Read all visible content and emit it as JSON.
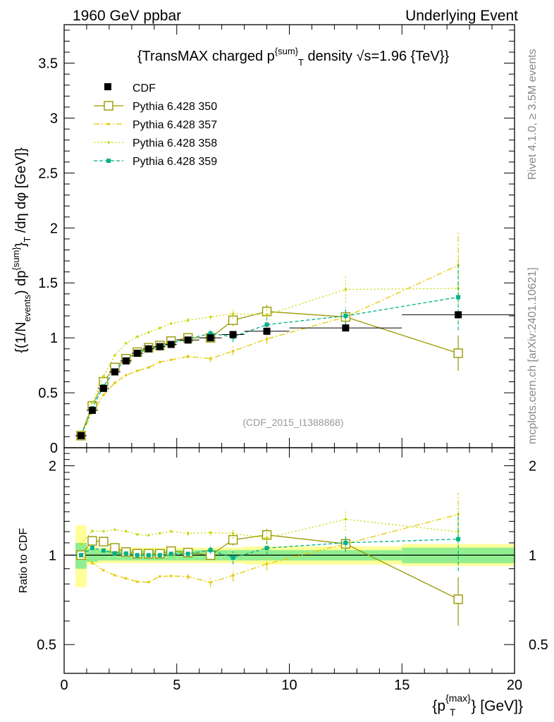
{
  "header": {
    "left": "1960 GeV ppbar",
    "right": "Underlying Event"
  },
  "side_labels": {
    "rivet": "Rivet 4.1.0, ≥ 3.5M events",
    "mcplots": "mcplots.cern.ch [arXiv:2401.10621]"
  },
  "chart_data": {
    "type": "line",
    "title": "{TransMAX charged p^{sum}_T density √s=1.96 {TeV}}",
    "title_parts": {
      "pre": "{TransMAX charged p",
      "sup": "{sum}",
      "sub": "T",
      "post": " density √s=1.96 {TeV}}"
    },
    "analysis_id": "(CDF_2015_I1388868)",
    "xlabel": "{p_T^{max}} [GeV]",
    "xlabel_parts": {
      "pre": "{p",
      "sup": "{max}",
      "sub": "T",
      "post": "} [GeV]}"
    },
    "ylabel": "{(1/N_events) dp^{sum}_T /dη dφ [GeV]}",
    "ylabel_parts": {
      "a": "{(1/N",
      "a_sub": "events",
      "b": ") dp",
      "b_sup": "{sum}",
      "c": "}",
      "c_sub": "T",
      "d": " /dη  dφ [GeV]}"
    },
    "ratio_ylabel": "Ratio to CDF",
    "xlim": [
      0,
      20
    ],
    "ylim": [
      0,
      3.85
    ],
    "ratio_ylim": [
      0.4,
      2.3
    ],
    "x_ticks": [
      0,
      5,
      10,
      15,
      20
    ],
    "y_ticks": [
      0,
      0.5,
      1,
      1.5,
      2,
      2.5,
      3,
      3.5
    ],
    "y_tick_labels": [
      "0",
      "0.5",
      "1",
      "1.5",
      "2",
      "2.5",
      "3",
      "3.5"
    ],
    "ratio_ticks": [
      0.5,
      1,
      2
    ],
    "ratio_tick_labels": [
      "0.5",
      "1",
      "2"
    ],
    "legend_position": "top-left",
    "data": {
      "name": "CDF",
      "x": [
        0.75,
        1.25,
        1.75,
        2.25,
        2.75,
        3.25,
        3.75,
        4.25,
        4.75,
        5.5,
        6.5,
        7.5,
        9.0,
        12.5,
        17.5
      ],
      "y": [
        0.11,
        0.34,
        0.54,
        0.69,
        0.79,
        0.86,
        0.9,
        0.92,
        0.94,
        0.98,
        1.0,
        1.03,
        1.06,
        1.09,
        1.21
      ],
      "xerr": [
        0.25,
        0.25,
        0.25,
        0.25,
        0.25,
        0.25,
        0.25,
        0.25,
        0.25,
        0.5,
        0.5,
        0.5,
        1.0,
        2.5,
        2.5
      ]
    },
    "series": [
      {
        "name": "Pythia 6.428 350",
        "color": "#999900",
        "dash": "",
        "marker": "open-square",
        "y": [
          0.11,
          0.38,
          0.6,
          0.73,
          0.81,
          0.87,
          0.91,
          0.93,
          0.97,
          1.0,
          1.0,
          1.16,
          1.24,
          1.19,
          0.86
        ],
        "err": [
          0,
          0,
          0,
          0,
          0,
          0,
          0,
          0,
          0,
          0,
          0.02,
          0.05,
          0.06,
          0.07,
          0.16
        ]
      },
      {
        "name": "Pythia 6.428 357",
        "color": "#e5c800",
        "dash": "8,3,2,3",
        "marker": "dot",
        "y": [
          0.11,
          0.32,
          0.48,
          0.59,
          0.66,
          0.7,
          0.73,
          0.78,
          0.8,
          0.83,
          0.81,
          0.88,
          0.99,
          1.19,
          1.66
        ],
        "err": [
          0,
          0,
          0,
          0,
          0,
          0,
          0,
          0,
          0,
          0.02,
          0.03,
          0.04,
          0.05,
          0.06,
          0.3
        ]
      },
      {
        "name": "Pythia 6.428 358",
        "color": "#c8d800",
        "dash": "2,3",
        "marker": "dot",
        "y": [
          0.12,
          0.41,
          0.65,
          0.84,
          0.95,
          1.01,
          1.05,
          1.09,
          1.13,
          1.16,
          1.19,
          1.22,
          1.21,
          1.44,
          1.45
        ],
        "err": [
          0,
          0,
          0,
          0,
          0,
          0,
          0,
          0,
          0,
          0.02,
          0.03,
          0.05,
          0.06,
          0.12,
          0.3
        ]
      },
      {
        "name": "Pythia 6.428 359",
        "color": "#00b088",
        "dash": "5,3",
        "marker": "filled-square",
        "y": [
          0.11,
          0.36,
          0.56,
          0.7,
          0.8,
          0.86,
          0.9,
          0.92,
          0.95,
          0.99,
          1.04,
          1.01,
          1.12,
          1.2,
          1.37
        ],
        "err": [
          0,
          0,
          0,
          0,
          0,
          0,
          0,
          0,
          0,
          0.02,
          0.03,
          0.05,
          0.06,
          0.08,
          0.3
        ]
      }
    ],
    "ratio_band": {
      "edges": [
        0.5,
        1.0,
        1.5,
        2.0,
        2.5,
        3.0,
        3.5,
        4.0,
        4.5,
        5.0,
        6.0,
        7.0,
        8.0,
        10.0,
        15.0,
        20.0
      ],
      "stat_lo": [
        0.9,
        0.95,
        0.96,
        0.96,
        0.96,
        0.96,
        0.96,
        0.96,
        0.96,
        0.96,
        0.96,
        0.96,
        0.96,
        0.96,
        0.94
      ],
      "stat_hi": [
        1.1,
        1.05,
        1.04,
        1.04,
        1.04,
        1.04,
        1.04,
        1.04,
        1.04,
        1.04,
        1.04,
        1.04,
        1.04,
        1.04,
        1.06
      ],
      "tot_lo": [
        0.78,
        0.93,
        0.94,
        0.94,
        0.94,
        0.94,
        0.94,
        0.94,
        0.94,
        0.94,
        0.94,
        0.94,
        0.93,
        0.93,
        0.92
      ],
      "tot_hi": [
        1.26,
        1.07,
        1.06,
        1.06,
        1.06,
        1.06,
        1.06,
        1.06,
        1.06,
        1.06,
        1.06,
        1.06,
        1.07,
        1.07,
        1.09
      ],
      "stat_color": "#90ee90",
      "tot_color": "#ffff99"
    }
  }
}
